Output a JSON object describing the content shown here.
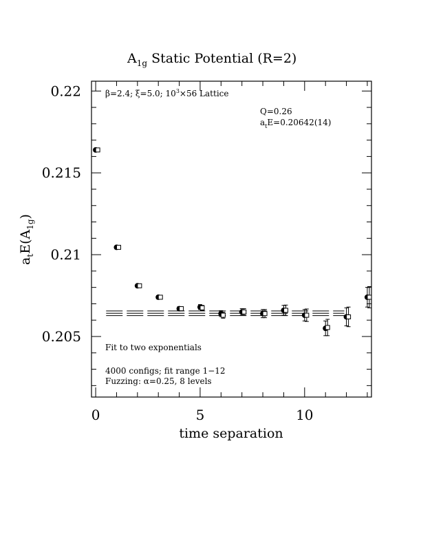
{
  "chart_data": {
    "type": "scatter",
    "title": {
      "main": "A",
      "sub": "1g",
      "rest": " Static Potential (R=2)"
    },
    "xlabel": "time separation",
    "ylabel": {
      "a": "a",
      "t": "t",
      "E": "E(A",
      "sub": "1g",
      "close": ")"
    },
    "xlim": [
      -0.2,
      13.2
    ],
    "ylim": [
      0.2013,
      0.2206
    ],
    "x_ticks": [
      {
        "value": 0,
        "label": "0"
      },
      {
        "value": 5,
        "label": "5"
      },
      {
        "value": 10,
        "label": "10"
      }
    ],
    "y_ticks": [
      {
        "value": 0.205,
        "label": "0.205"
      },
      {
        "value": 0.21,
        "label": "0.21"
      },
      {
        "value": 0.215,
        "label": "0.215"
      },
      {
        "value": 0.22,
        "label": "0.22"
      }
    ],
    "annotations": {
      "lattice": {
        "beta": "β=2.4; ξ=5.0; 10",
        "exp": "3",
        "rest": "×56 Lattice"
      },
      "q": "Q=0.26",
      "energy": {
        "a": "a",
        "t": "t",
        "rest": "E=0.20642(14)"
      },
      "fit": "Fit to two exponentials",
      "configs": "4000 configs; fit range 1−12",
      "fuzzing": "Fuzzing: α=0.25, 8 levels"
    },
    "fit_band": {
      "x_range": [
        0.5,
        11.9
      ],
      "center": 0.20642,
      "error": 0.00014
    },
    "series": [
      {
        "marker": "filled-circle",
        "x": [
          0,
          1,
          2,
          3,
          4,
          5,
          6,
          7,
          8,
          9,
          10,
          11,
          12,
          13
        ],
        "y": [
          0.2164,
          0.21045,
          0.2081,
          0.2074,
          0.2067,
          0.2068,
          0.2064,
          0.2065,
          0.2064,
          0.2066,
          0.2063,
          0.2055,
          0.2062,
          0.2074
        ],
        "err": [
          8e-05,
          8e-05,
          9e-05,
          0.0001,
          0.00012,
          0.00015,
          0.00018,
          0.0002,
          0.00025,
          0.0003,
          0.00035,
          0.00045,
          0.00055,
          0.0006
        ]
      },
      {
        "marker": "open-square",
        "x": [
          0.1,
          1.1,
          2.1,
          3.1,
          4.1,
          5.1,
          6.1,
          7.1,
          8.1,
          9.1,
          10.1,
          11.1,
          12.1,
          13.1
        ],
        "y": [
          0.2164,
          0.21045,
          0.2081,
          0.2074,
          0.2067,
          0.20675,
          0.2063,
          0.2065,
          0.2064,
          0.2066,
          0.2063,
          0.20555,
          0.2062,
          0.2074
        ],
        "err": [
          8e-05,
          8e-05,
          9e-05,
          0.0001,
          0.00012,
          0.00015,
          0.00018,
          0.0002,
          0.00025,
          0.00032,
          0.00038,
          0.0005,
          0.0006,
          0.00065
        ]
      }
    ]
  }
}
